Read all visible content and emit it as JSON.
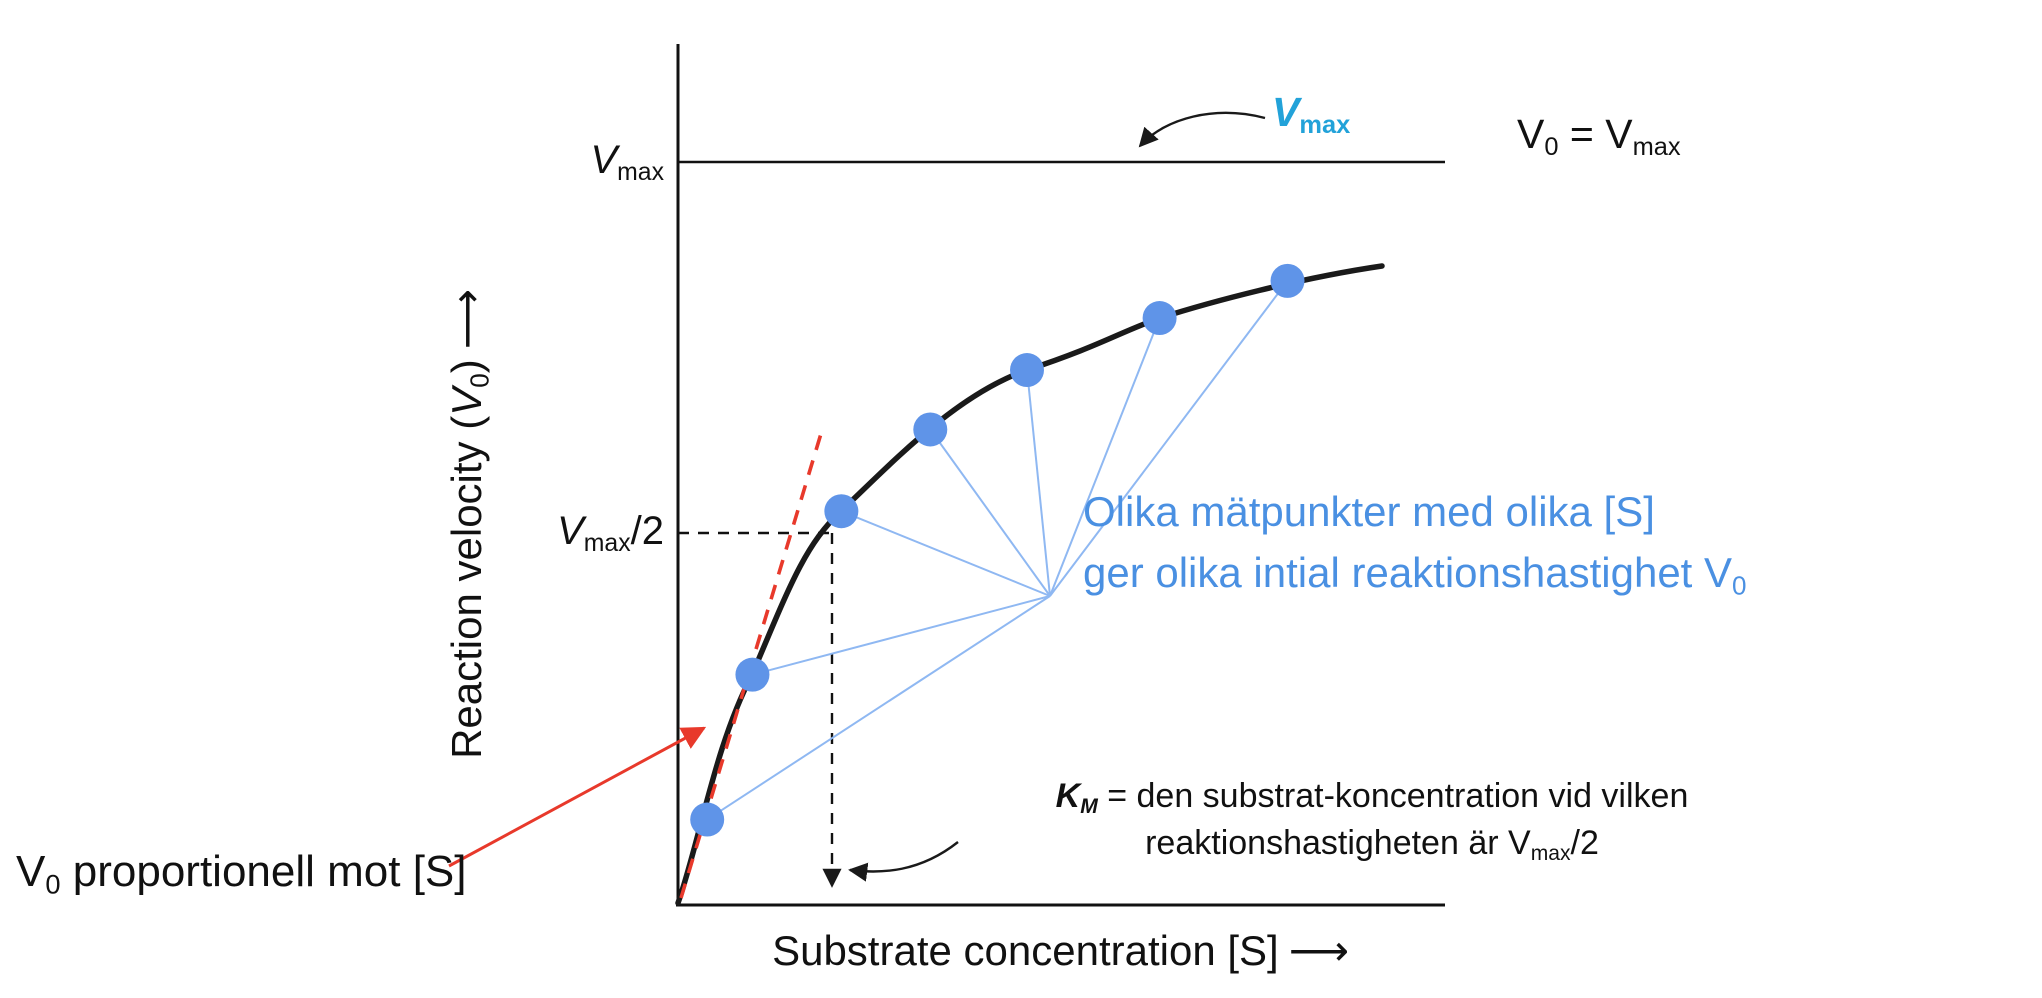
{
  "colors": {
    "ink": "#111111",
    "curve": "#1a1a1a",
    "point": "#5f94e8",
    "connector": "#8fb8f2",
    "note_blue": "#4a90e2",
    "vmax_cyan": "#22a2d9",
    "red": "#e8392b",
    "background": "#ffffff"
  },
  "chart_data": {
    "type": "line",
    "title": "Michaelis-Menten saturation curve (reaction velocity vs substrate concentration)",
    "xlabel": "Substrate concentration [S]",
    "ylabel": "Reaction velocity (V0)",
    "axes_unlabeled_numerically": true,
    "curve_model": "V0 = Vmax·[S]/(KM+[S])",
    "ylim_fraction_of_Vmax": [
      0,
      1.1
    ],
    "reference_lines": [
      {
        "label": "Vmax",
        "v_over_vmax": 1.0
      },
      {
        "label": "Vmax/2",
        "v_over_vmax": 0.5,
        "s_over_km": 1.0
      }
    ],
    "points": [
      {
        "s": 0.2,
        "v": 0.115
      },
      {
        "s": 0.49,
        "v": 0.31
      },
      {
        "s": 1.06,
        "v": 0.53
      },
      {
        "s": 1.63,
        "v": 0.64
      },
      {
        "s": 2.25,
        "v": 0.72
      },
      {
        "s": 3.1,
        "v": 0.79
      },
      {
        "s": 3.92,
        "v": 0.84
      }
    ],
    "points_units": "s = [S]/KM, v = V0/Vmax (estimated from figure)",
    "annotations": [
      "V0 = Vmax",
      "Vmax",
      "Olika mätpunkter med olika [S] ger olika intial reaktionshastighet V0",
      "KM = den substrat-koncentration vid vilken reaktionshastigheten är Vmax/2",
      "V0 proportionell mot [S]"
    ]
  },
  "labels": {
    "y_axis_pre": "Reaction velocity (",
    "y_axis_v": "V",
    "y_axis_sub": "0",
    "y_axis_post": ")",
    "y_axis_arrow": "⟶",
    "x_axis": "Substrate concentration [S]",
    "x_axis_arrow": "⟶",
    "vmax_v": "V",
    "vmax_sub": "max",
    "vmax_half_v": "V",
    "vmax_half_sub": "max",
    "vmax_half_post": "/2",
    "vmax_callout_v": "V",
    "vmax_callout_sub": "max",
    "v0eq_v0": "V",
    "v0eq_sub0": "0",
    "v0eq_mid": " = ",
    "v0eq_v": "V",
    "v0eq_submax": "max",
    "blue_line1": "Olika mätpunkter med olika [S]",
    "blue_line2": "ger olika intial reaktionshastighet V",
    "blue_line2_sub": "0",
    "km_k": "K",
    "km_sub": "M",
    "km_rest": " = den substrat-koncentration vid vilken",
    "km_line2a": "reaktionshastigheten är V",
    "km_line2_sub": "max",
    "km_line2b": "/2",
    "prop_v": "V",
    "prop_sub": "0",
    "prop_rest": " proportionell mot [S]"
  }
}
